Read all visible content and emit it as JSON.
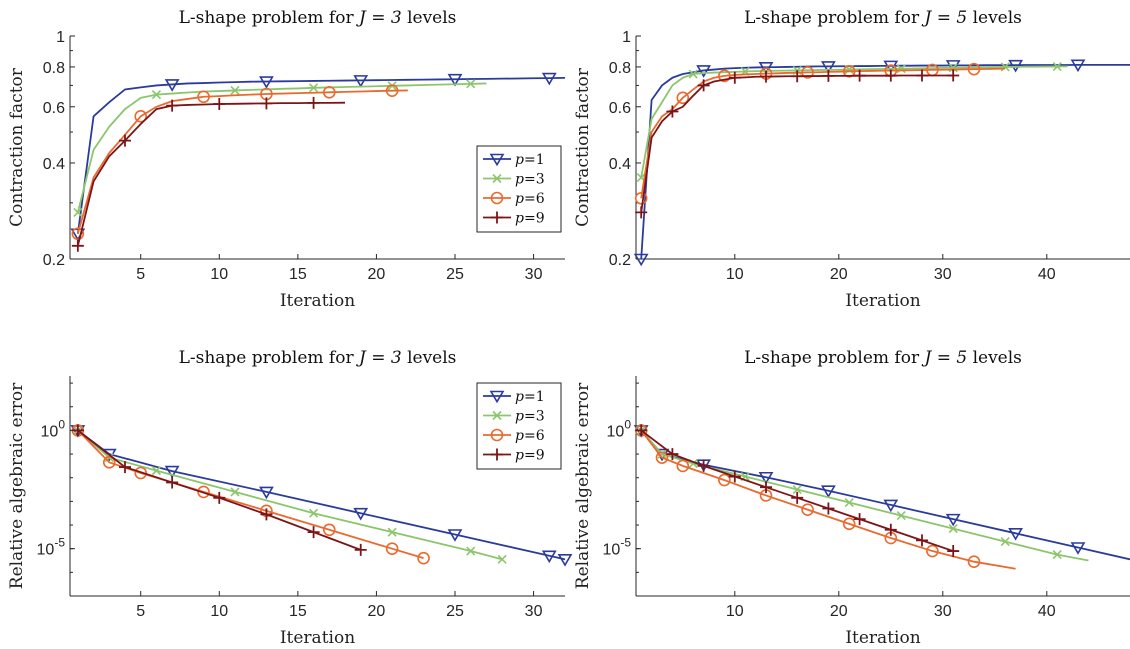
{
  "chart_data": [
    {
      "type": "line",
      "panel": "top-left",
      "title_prefix": "L-shape problem for ",
      "title_math": "J = 3",
      "title_suffix": " levels",
      "xlabel": "Iteration",
      "ylabel": "Contraction factor",
      "xlim": [
        0.5,
        32
      ],
      "ylim": [
        0.2,
        1
      ],
      "yscale": "log",
      "xticks": [
        5,
        10,
        15,
        20,
        25,
        30
      ],
      "yticks": [
        0.2,
        0.4,
        0.6,
        0.8,
        1
      ],
      "ytick_labels": [
        "0.2",
        "0.4",
        "0.6",
        "0.8",
        "1"
      ],
      "legend": "right",
      "series": [
        {
          "name": "p=1",
          "color": "#2b3b9c",
          "marker": "triangle-down",
          "marker_every": 6,
          "marker_start": 0,
          "x": [
            1,
            2,
            3,
            4,
            5,
            6,
            7,
            8,
            9,
            10,
            11,
            12,
            13,
            14,
            15,
            16,
            17,
            18,
            19,
            20,
            21,
            22,
            23,
            24,
            25,
            26,
            27,
            28,
            29,
            30,
            31,
            32
          ],
          "y": [
            0.24,
            0.56,
            0.62,
            0.68,
            0.69,
            0.7,
            0.705,
            0.71,
            0.712,
            0.715,
            0.717,
            0.719,
            0.72,
            0.721,
            0.722,
            0.723,
            0.724,
            0.725,
            0.726,
            0.727,
            0.728,
            0.729,
            0.73,
            0.731,
            0.732,
            0.733,
            0.734,
            0.735,
            0.736,
            0.737,
            0.738,
            0.739
          ]
        },
        {
          "name": "p=3",
          "color": "#8cc66b",
          "marker": "x",
          "marker_every": 5,
          "marker_start": 0,
          "x": [
            1,
            2,
            3,
            4,
            5,
            6,
            7,
            8,
            9,
            10,
            11,
            12,
            13,
            14,
            15,
            16,
            17,
            18,
            19,
            20,
            21,
            22,
            23,
            24,
            25,
            26,
            27
          ],
          "y": [
            0.28,
            0.44,
            0.52,
            0.59,
            0.64,
            0.655,
            0.66,
            0.665,
            0.67,
            0.672,
            0.675,
            0.678,
            0.68,
            0.683,
            0.685,
            0.688,
            0.69,
            0.692,
            0.694,
            0.696,
            0.698,
            0.7,
            0.702,
            0.704,
            0.706,
            0.708,
            0.71
          ]
        },
        {
          "name": "p=6",
          "color": "#ea6a2e",
          "marker": "circle",
          "marker_every": 4,
          "marker_start": 0,
          "x": [
            1,
            2,
            3,
            4,
            5,
            6,
            7,
            8,
            9,
            10,
            11,
            12,
            13,
            14,
            15,
            16,
            17,
            18,
            19,
            20,
            21,
            22
          ],
          "y": [
            0.24,
            0.36,
            0.43,
            0.49,
            0.56,
            0.6,
            0.625,
            0.635,
            0.645,
            0.648,
            0.652,
            0.655,
            0.658,
            0.66,
            0.662,
            0.664,
            0.666,
            0.668,
            0.67,
            0.672,
            0.674,
            0.675
          ]
        },
        {
          "name": "p=9",
          "color": "#7c1518",
          "marker": "plus",
          "marker_every": 3,
          "marker_start": 0,
          "x": [
            1,
            2,
            3,
            4,
            5,
            6,
            7,
            8,
            9,
            10,
            11,
            12,
            13,
            14,
            15,
            16,
            17,
            18
          ],
          "y": [
            0.22,
            0.35,
            0.42,
            0.47,
            0.53,
            0.59,
            0.605,
            0.608,
            0.61,
            0.612,
            0.613,
            0.614,
            0.615,
            0.616,
            0.616,
            0.617,
            0.617,
            0.618
          ]
        }
      ]
    },
    {
      "type": "line",
      "panel": "top-right",
      "title_prefix": "L-shape problem for ",
      "title_math": "J = 5",
      "title_suffix": " levels",
      "xlabel": "Iteration",
      "ylabel": "Contraction factor",
      "xlim": [
        0.5,
        48
      ],
      "ylim": [
        0.2,
        1
      ],
      "yscale": "log",
      "xticks": [
        10,
        20,
        30,
        40
      ],
      "yticks": [
        0.2,
        0.4,
        0.6,
        0.8,
        1
      ],
      "ytick_labels": [
        "0.2",
        "0.4",
        "0.6",
        "0.8",
        "1"
      ],
      "legend": "none",
      "series": [
        {
          "name": "p=1",
          "color": "#2b3b9c",
          "marker": "triangle-down",
          "marker_every": 6,
          "marker_start": 0,
          "x": [
            1,
            2,
            3,
            4,
            5,
            6,
            7,
            8,
            9,
            10,
            11,
            12,
            13,
            14,
            15,
            16,
            17,
            18,
            19,
            20,
            21,
            22,
            23,
            24,
            25,
            26,
            27,
            28,
            29,
            30,
            31,
            32,
            33,
            34,
            35,
            36,
            37,
            38,
            39,
            40,
            41,
            42,
            43,
            44,
            45,
            46,
            47,
            48
          ],
          "y": [
            0.2,
            0.63,
            0.7,
            0.74,
            0.76,
            0.77,
            0.78,
            0.785,
            0.79,
            0.793,
            0.795,
            0.797,
            0.798,
            0.799,
            0.8,
            0.801,
            0.802,
            0.803,
            0.803,
            0.804,
            0.804,
            0.805,
            0.805,
            0.806,
            0.806,
            0.807,
            0.807,
            0.808,
            0.808,
            0.808,
            0.809,
            0.809,
            0.809,
            0.81,
            0.81,
            0.81,
            0.81,
            0.811,
            0.811,
            0.811,
            0.811,
            0.811,
            0.812,
            0.812,
            0.812,
            0.812,
            0.812,
            0.812
          ]
        },
        {
          "name": "p=3",
          "color": "#8cc66b",
          "marker": "x",
          "marker_every": 5,
          "marker_start": 0,
          "x": [
            1,
            2,
            3,
            4,
            5,
            6,
            7,
            8,
            9,
            10,
            11,
            12,
            13,
            14,
            15,
            16,
            17,
            18,
            19,
            20,
            21,
            22,
            23,
            24,
            25,
            26,
            27,
            28,
            29,
            30,
            31,
            32,
            33,
            34,
            35,
            36,
            37,
            38,
            39,
            40,
            41,
            42
          ],
          "y": [
            0.36,
            0.55,
            0.62,
            0.7,
            0.74,
            0.76,
            0.765,
            0.768,
            0.77,
            0.772,
            0.774,
            0.776,
            0.777,
            0.778,
            0.779,
            0.78,
            0.781,
            0.782,
            0.783,
            0.784,
            0.785,
            0.786,
            0.787,
            0.788,
            0.789,
            0.79,
            0.791,
            0.792,
            0.793,
            0.794,
            0.795,
            0.796,
            0.797,
            0.798,
            0.799,
            0.8,
            0.8,
            0.801,
            0.801,
            0.802,
            0.802,
            0.803
          ]
        },
        {
          "name": "p=6",
          "color": "#ea6a2e",
          "marker": "circle",
          "marker_every": 4,
          "marker_start": 0,
          "x": [
            1,
            2,
            3,
            4,
            5,
            6,
            7,
            8,
            9,
            10,
            11,
            12,
            13,
            14,
            15,
            16,
            17,
            18,
            19,
            20,
            21,
            22,
            23,
            24,
            25,
            26,
            27,
            28,
            29,
            30,
            31,
            32,
            33,
            34,
            35,
            36
          ],
          "y": [
            0.31,
            0.5,
            0.56,
            0.59,
            0.64,
            0.68,
            0.72,
            0.74,
            0.75,
            0.755,
            0.758,
            0.76,
            0.762,
            0.764,
            0.766,
            0.767,
            0.769,
            0.77,
            0.772,
            0.773,
            0.775,
            0.776,
            0.777,
            0.778,
            0.779,
            0.78,
            0.781,
            0.782,
            0.783,
            0.784,
            0.785,
            0.786,
            0.787,
            0.788,
            0.789,
            0.79
          ]
        },
        {
          "name": "p=9",
          "color": "#7c1518",
          "marker": "plus",
          "marker_every": 3,
          "marker_start": 0,
          "x": [
            1,
            2,
            3,
            4,
            5,
            6,
            7,
            8,
            9,
            10,
            11,
            12,
            13,
            14,
            15,
            16,
            17,
            18,
            19,
            20,
            21,
            22,
            23,
            24,
            25,
            26,
            27,
            28,
            29,
            30,
            31
          ],
          "y": [
            0.28,
            0.48,
            0.54,
            0.58,
            0.6,
            0.65,
            0.7,
            0.72,
            0.73,
            0.74,
            0.742,
            0.745,
            0.746,
            0.747,
            0.748,
            0.748,
            0.749,
            0.749,
            0.75,
            0.75,
            0.75,
            0.751,
            0.751,
            0.751,
            0.751,
            0.752,
            0.752,
            0.752,
            0.752,
            0.752,
            0.752
          ]
        }
      ]
    },
    {
      "type": "line",
      "panel": "bottom-left",
      "title_prefix": "L-shape problem for ",
      "title_math": "J = 3",
      "title_suffix": " levels",
      "xlabel": "Iteration",
      "ylabel": "Relative algebraic error",
      "xlim": [
        0.5,
        32
      ],
      "ylim": [
        -7,
        2.3
      ],
      "yscale": "log",
      "xticks": [
        5,
        10,
        15,
        20,
        25,
        30
      ],
      "yticks": [
        0,
        -5
      ],
      "ytick_base": "10",
      "ytick_exps": [
        "0",
        "-5"
      ],
      "legend": "top-right",
      "series": [
        {
          "name": "p=1",
          "color": "#2b3b9c",
          "marker": "triangle-down",
          "marker_every": 6,
          "marker_start": 0,
          "x": [
            1,
            3,
            7,
            13,
            19,
            25,
            31,
            32
          ],
          "y": [
            0,
            -1.0,
            -1.72,
            -2.6,
            -3.5,
            -4.4,
            -5.3,
            -5.45
          ]
        },
        {
          "name": "p=3",
          "color": "#8cc66b",
          "marker": "x",
          "marker_every": 5,
          "marker_start": 0,
          "x": [
            1,
            3,
            6,
            11,
            16,
            21,
            26,
            28
          ],
          "y": [
            0,
            -1.15,
            -1.7,
            -2.6,
            -3.5,
            -4.3,
            -5.1,
            -5.45
          ]
        },
        {
          "name": "p=6",
          "color": "#ea6a2e",
          "marker": "circle",
          "marker_every": 4,
          "marker_start": 0,
          "x": [
            1,
            3,
            5,
            9,
            13,
            17,
            21,
            23
          ],
          "y": [
            0,
            -1.35,
            -1.8,
            -2.6,
            -3.4,
            -4.2,
            -5.0,
            -5.4
          ]
        },
        {
          "name": "p=9",
          "color": "#7c1518",
          "marker": "plus",
          "marker_every": 3,
          "marker_start": 0,
          "x": [
            1,
            4,
            7,
            10,
            13,
            16,
            19
          ],
          "y": [
            0,
            -1.55,
            -2.2,
            -2.85,
            -3.55,
            -4.3,
            -5.05
          ]
        }
      ]
    },
    {
      "type": "line",
      "panel": "bottom-right",
      "title_prefix": "L-shape problem for ",
      "title_math": "J = 5",
      "title_suffix": " levels",
      "xlabel": "Iteration",
      "ylabel": "Relative algebraic error",
      "xlim": [
        0.5,
        48
      ],
      "ylim": [
        -7,
        2.3
      ],
      "yscale": "log",
      "xticks": [
        10,
        20,
        30,
        40
      ],
      "yticks": [
        0,
        -5
      ],
      "ytick_base": "10",
      "ytick_exps": [
        "0",
        "-5"
      ],
      "legend": "none",
      "series": [
        {
          "name": "p=1",
          "color": "#2b3b9c",
          "marker": "triangle-down",
          "marker_every": 6,
          "marker_start": 0,
          "x": [
            1,
            3,
            7,
            13,
            19,
            25,
            31,
            37,
            43,
            48
          ],
          "y": [
            0,
            -1.0,
            -1.45,
            -1.98,
            -2.55,
            -3.15,
            -3.75,
            -4.35,
            -4.95,
            -5.45
          ]
        },
        {
          "name": "p=3",
          "color": "#8cc66b",
          "marker": "x",
          "marker_every": 5,
          "marker_start": 0,
          "x": [
            1,
            3,
            6,
            11,
            16,
            21,
            26,
            31,
            36,
            41,
            44
          ],
          "y": [
            0,
            -1.0,
            -1.4,
            -1.95,
            -2.5,
            -3.05,
            -3.6,
            -4.15,
            -4.7,
            -5.25,
            -5.5
          ]
        },
        {
          "name": "p=6",
          "color": "#ea6a2e",
          "marker": "circle",
          "marker_every": 4,
          "marker_start": 0,
          "x": [
            1,
            3,
            5,
            9,
            13,
            17,
            21,
            25,
            29,
            33,
            37
          ],
          "y": [
            0,
            -1.15,
            -1.5,
            -2.1,
            -2.75,
            -3.35,
            -3.95,
            -4.55,
            -5.1,
            -5.55,
            -5.85
          ]
        },
        {
          "name": "p=9",
          "color": "#7c1518",
          "marker": "plus",
          "marker_every": 3,
          "marker_start": 0,
          "x": [
            1,
            4,
            7,
            10,
            13,
            16,
            19,
            22,
            25,
            28,
            31
          ],
          "y": [
            0,
            -1.0,
            -1.5,
            -1.95,
            -2.4,
            -2.85,
            -3.3,
            -3.75,
            -4.2,
            -4.65,
            -5.1
          ]
        }
      ]
    }
  ]
}
